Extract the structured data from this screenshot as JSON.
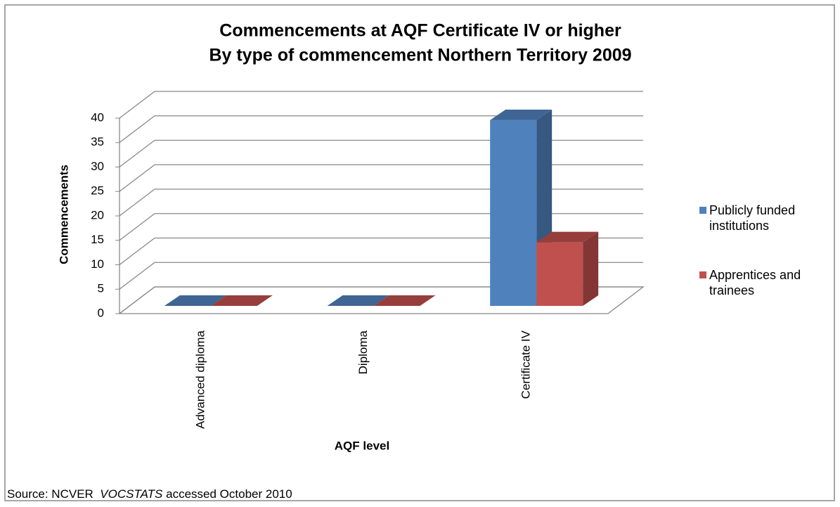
{
  "chart_data": {
    "type": "bar3d",
    "title": "Commencements at AQF Certificate IV or higher",
    "subtitle": "By type of commencement Northern Territory 2009",
    "x_label": "AQF level",
    "y_label": "Commencements",
    "categories": [
      "Advanced diploma",
      "Diploma",
      "Certificate IV"
    ],
    "series": [
      {
        "name": "Publicly funded institutions",
        "color": "#4f81bd",
        "values": [
          0,
          0,
          38
        ]
      },
      {
        "name": "Apprentices and trainees",
        "color": "#c0504d",
        "values": [
          0,
          0,
          13
        ]
      }
    ],
    "ylim": [
      0,
      40
    ],
    "yticks": [
      0,
      5,
      10,
      15,
      20,
      25,
      30,
      35,
      40
    ],
    "grid": true,
    "legend": "right",
    "source": {
      "prefix": "Source: NCVER",
      "italic": "VOCSTATS",
      "suffix": "accessed October 2010"
    }
  }
}
